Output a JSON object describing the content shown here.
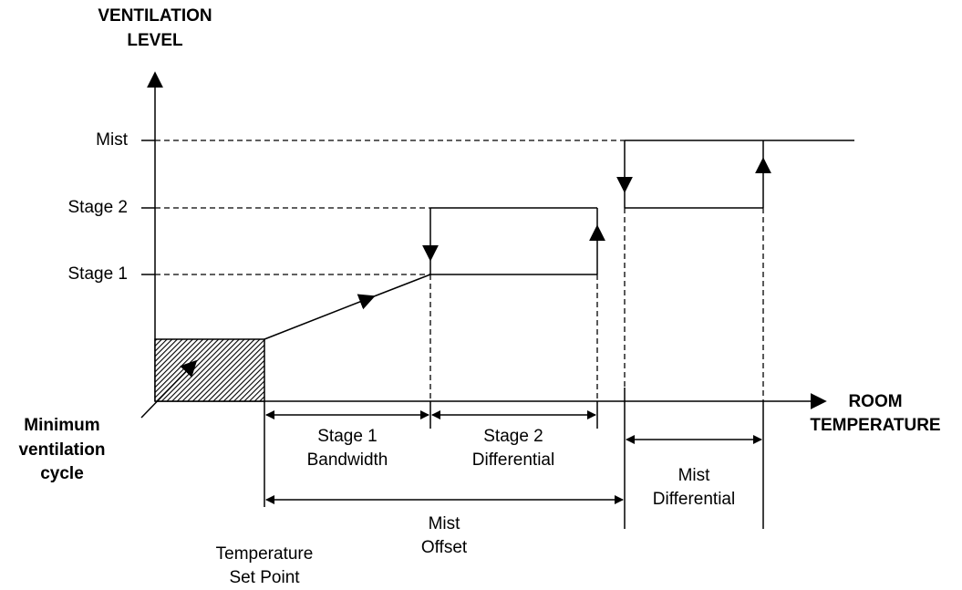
{
  "axes": {
    "y_title": [
      "VENTILATION",
      "LEVEL"
    ],
    "x_title": [
      "ROOM",
      "TEMPERATURE"
    ]
  },
  "levels": [
    "Mist",
    "Stage 2",
    "Stage 1"
  ],
  "minimum": [
    "Minimum",
    "ventilation",
    "cycle"
  ],
  "spans": {
    "stage1_bandwidth": [
      "Stage 1",
      "Bandwidth"
    ],
    "stage2_differential": [
      "Stage 2",
      "Differential"
    ],
    "mist_differential": [
      "Mist",
      "Differential"
    ],
    "mist_offset": [
      "Mist",
      "Offset"
    ],
    "set_point": [
      "Temperature",
      "Set Point"
    ]
  }
}
